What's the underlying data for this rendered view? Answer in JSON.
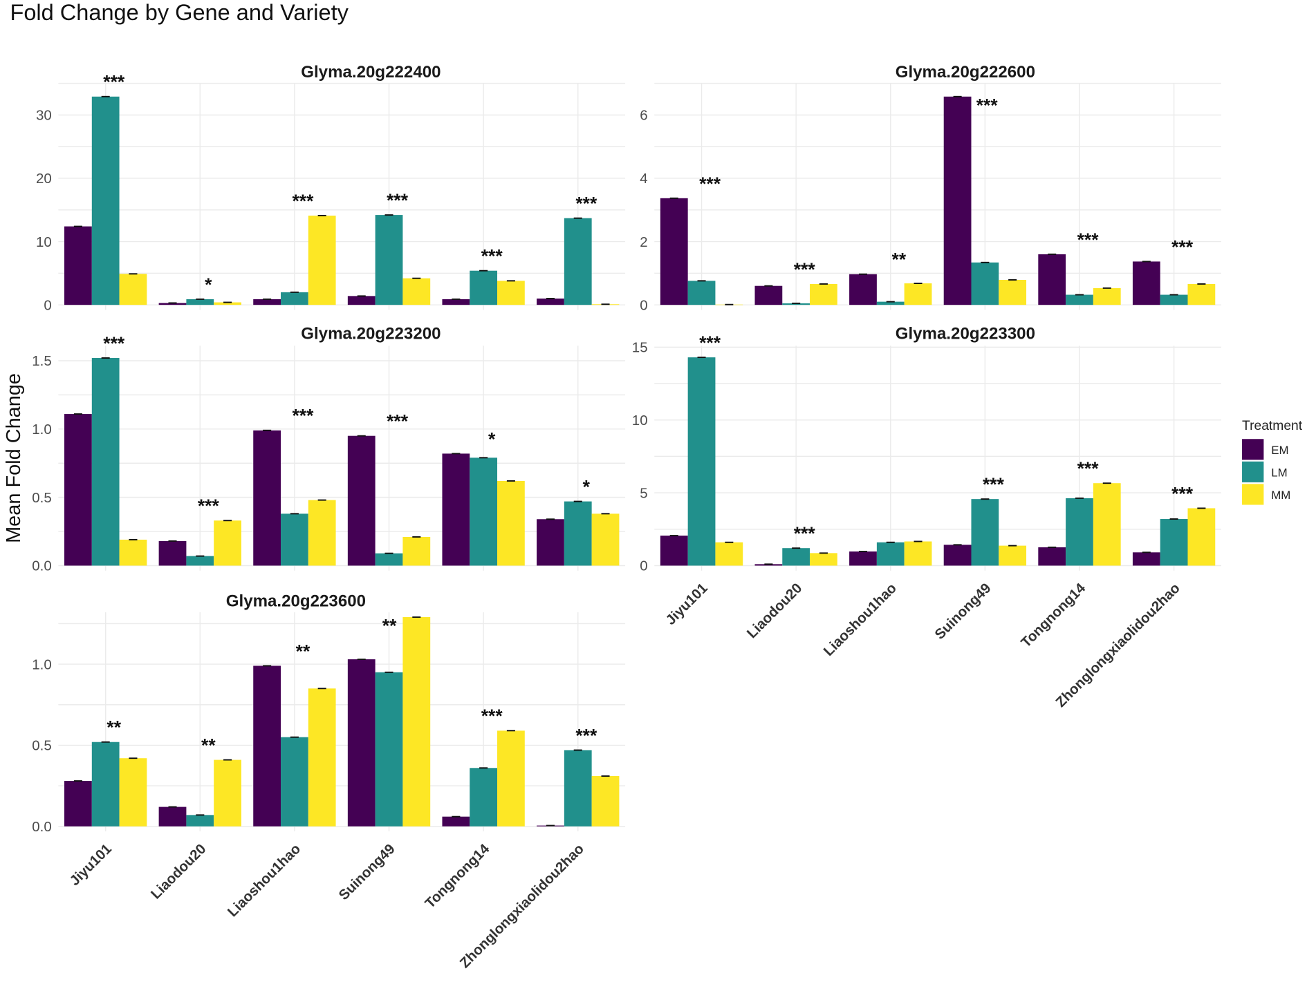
{
  "chart_data": {
    "type": "bar",
    "title": "Fold Change by Gene and Variety",
    "ylabel": "Mean Fold Change",
    "xlabel": "",
    "legend": {
      "title": "Treatment",
      "placement": "right",
      "entries": [
        "EM",
        "LM",
        "MM"
      ]
    },
    "colors": {
      "EM": "#440154",
      "LM": "#21908C",
      "MM": "#FDE725"
    },
    "categories": [
      "Jiyu101",
      "Liaodou20",
      "Liaoshou1hao",
      "Suinong49",
      "Tongnong14",
      "Zhonglongxiaolidou2hao"
    ],
    "panels": [
      {
        "gene": "Glyma.20g222400",
        "ylim": [
          0,
          35
        ],
        "ticks": [
          0,
          10,
          20,
          30
        ],
        "series": [
          {
            "name": "EM",
            "values": [
              12.4,
              0.3,
              0.9,
              1.4,
              0.9,
              1.0
            ]
          },
          {
            "name": "LM",
            "values": [
              32.9,
              0.9,
              2.0,
              14.2,
              5.4,
              13.7
            ]
          },
          {
            "name": "MM",
            "values": [
              4.9,
              0.4,
              14.1,
              4.2,
              3.8,
              0.1
            ]
          }
        ],
        "significance": [
          "***",
          "*",
          "***",
          "***",
          "***",
          "***"
        ]
      },
      {
        "gene": "Glyma.20g222600",
        "ylim": [
          0,
          7
        ],
        "ticks": [
          0,
          2,
          4,
          6
        ],
        "series": [
          {
            "name": "EM",
            "values": [
              3.37,
              0.6,
              0.97,
              6.58,
              1.6,
              1.37
            ]
          },
          {
            "name": "LM",
            "values": [
              0.76,
              0.05,
              0.1,
              1.34,
              0.32,
              0.32
            ]
          },
          {
            "name": "MM",
            "values": [
              0.01,
              0.66,
              0.68,
              0.79,
              0.53,
              0.66
            ]
          }
        ],
        "significance": [
          "***",
          "***",
          "**",
          "***",
          "***",
          "***"
        ]
      },
      {
        "gene": "Glyma.20g223200",
        "ylim": [
          0,
          1.61
        ],
        "ticks": [
          0.0,
          0.5,
          1.0,
          1.5
        ],
        "series": [
          {
            "name": "EM",
            "values": [
              1.11,
              0.18,
              0.99,
              0.95,
              0.82,
              0.34
            ]
          },
          {
            "name": "LM",
            "values": [
              1.52,
              0.07,
              0.38,
              0.09,
              0.79,
              0.47
            ]
          },
          {
            "name": "MM",
            "values": [
              0.19,
              0.33,
              0.48,
              0.21,
              0.62,
              0.38
            ]
          }
        ],
        "significance": [
          "***",
          "***",
          "***",
          "***",
          "*",
          "*"
        ]
      },
      {
        "gene": "Glyma.20g223300",
        "ylim": [
          0,
          15.1
        ],
        "ticks": [
          0,
          5,
          10,
          15
        ],
        "series": [
          {
            "name": "EM",
            "values": [
              2.06,
              0.1,
              0.97,
              1.43,
              1.26,
              0.91
            ]
          },
          {
            "name": "LM",
            "values": [
              14.3,
              1.2,
              1.6,
              4.57,
              4.63,
              3.2
            ]
          },
          {
            "name": "MM",
            "values": [
              1.6,
              0.86,
              1.66,
              1.37,
              5.66,
              3.94
            ]
          }
        ],
        "significance": [
          "***",
          "***",
          "",
          "***",
          "***",
          "***"
        ]
      },
      {
        "gene": "Glyma.20g223600",
        "ylim": [
          0,
          1.32
        ],
        "ticks": [
          0.0,
          0.5,
          1.0
        ],
        "series": [
          {
            "name": "EM",
            "values": [
              0.28,
              0.12,
              0.99,
              1.03,
              0.06,
              0.005
            ]
          },
          {
            "name": "LM",
            "values": [
              0.52,
              0.07,
              0.55,
              0.95,
              0.36,
              0.47
            ]
          },
          {
            "name": "MM",
            "values": [
              0.42,
              0.41,
              0.85,
              1.29,
              0.59,
              0.31
            ]
          }
        ],
        "significance": [
          "**",
          "**",
          "**",
          "**",
          "***",
          "***"
        ]
      }
    ]
  }
}
